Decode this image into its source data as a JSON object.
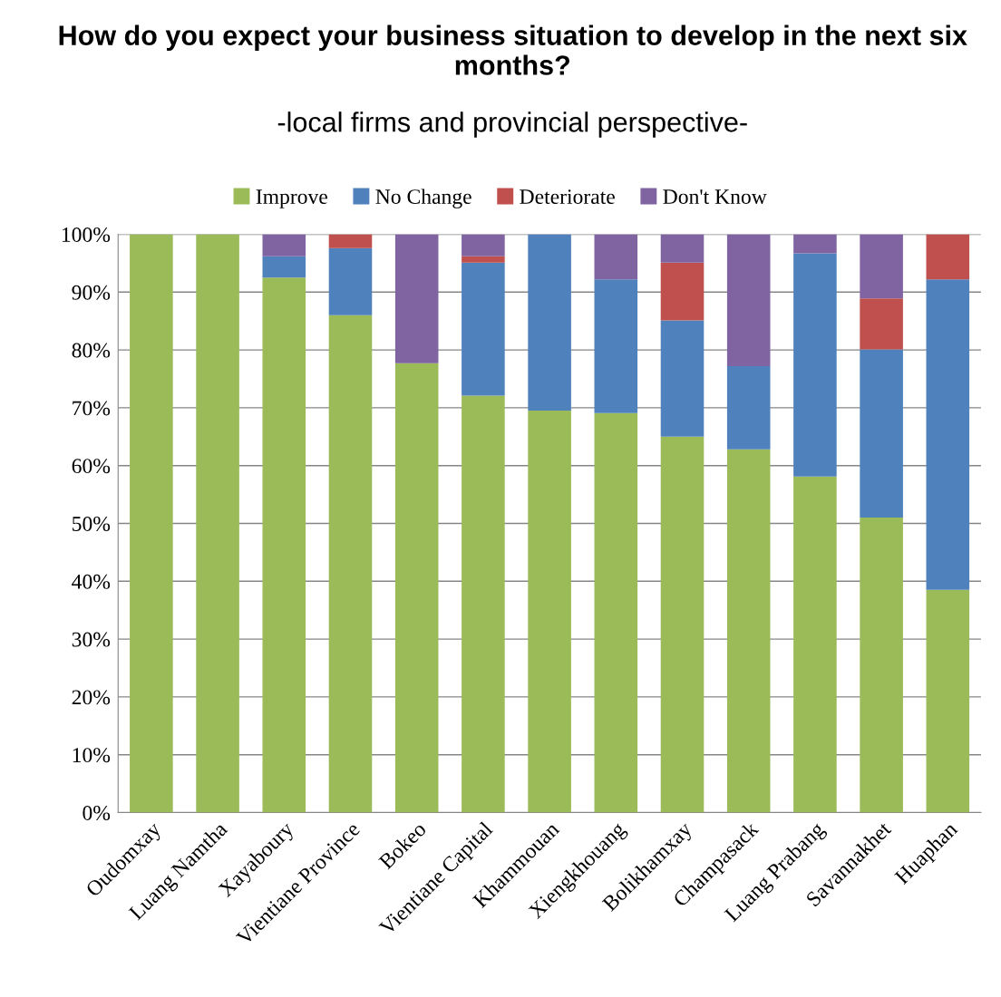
{
  "chart_data": {
    "type": "bar",
    "stacked": true,
    "title": "How do you expect your business situation to develop in the next six months?",
    "subtitle": "-local firms and provincial perspective-",
    "categories": [
      "Oudomxay",
      "Luang Namtha",
      "Xayaboury",
      "Vientiane Province",
      "Bokeo",
      "Vientiane Capital",
      "Khammouan",
      "Xiengkhouang",
      "Bolikhamxay",
      "Champasack",
      "Luang Prabang",
      "Savannakhet",
      "Huaphan"
    ],
    "series": [
      {
        "name": "Improve",
        "color": "#9bbb59",
        "values": [
          100,
          100,
          92.5,
          86.0,
          77.7,
          72.1,
          69.5,
          69.1,
          65.0,
          62.8,
          58.1,
          51.0,
          38.5
        ]
      },
      {
        "name": "No Change",
        "color": "#4f81bd",
        "values": [
          0,
          0,
          3.7,
          11.6,
          0,
          23.0,
          30.5,
          23.1,
          20.1,
          14.4,
          38.6,
          29.1,
          53.7
        ]
      },
      {
        "name": "Deteriorate",
        "color": "#c0504d",
        "values": [
          0,
          0,
          0,
          2.4,
          0,
          1.1,
          0,
          0,
          10.0,
          0,
          0,
          8.8,
          7.8
        ]
      },
      {
        "name": "Don't Know",
        "color": "#8064a2",
        "values": [
          0,
          0,
          3.8,
          0,
          22.3,
          3.8,
          0,
          7.8,
          4.9,
          22.8,
          3.3,
          11.1,
          0
        ]
      }
    ],
    "ylim": [
      0,
      100
    ],
    "yticks": [
      {
        "value": 0,
        "label": "0%"
      },
      {
        "value": 10,
        "label": "10%"
      },
      {
        "value": 20,
        "label": "20%"
      },
      {
        "value": 30,
        "label": "30%"
      },
      {
        "value": 40,
        "label": "40%"
      },
      {
        "value": 50,
        "label": "50%"
      },
      {
        "value": 60,
        "label": "60%"
      },
      {
        "value": 70,
        "label": "70%"
      },
      {
        "value": 80,
        "label": "80%"
      },
      {
        "value": 90,
        "label": "90%"
      },
      {
        "value": 100,
        "label": "100%"
      }
    ],
    "grid": "y",
    "legend": "top"
  }
}
